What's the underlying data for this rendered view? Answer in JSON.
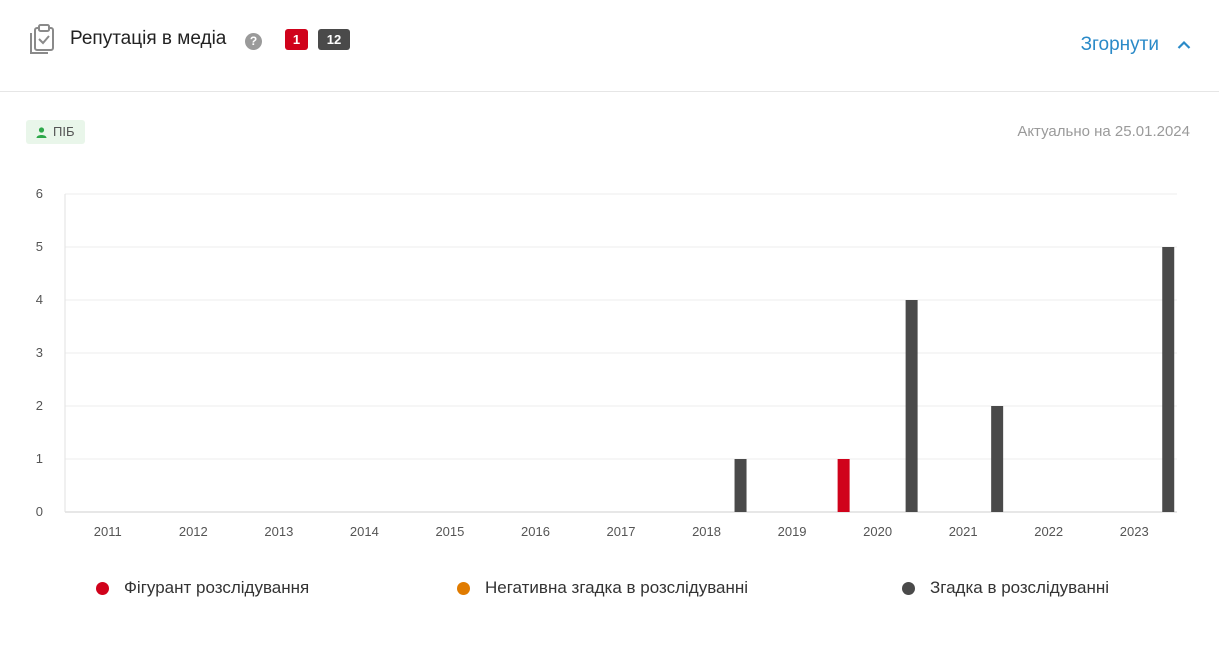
{
  "header": {
    "title": "Репутація в медіа",
    "help_icon": "?",
    "badge_red": "1",
    "badge_dark": "12",
    "collapse_label": "Згорнути"
  },
  "tag": {
    "label": "ПІБ",
    "icon": "person-icon",
    "color": "#2ea84a"
  },
  "actual_date": "Актуально на 25.01.2024",
  "colors": {
    "accent": "#2a8ac8",
    "figurant": "#d0021b",
    "negative": "#e07b00",
    "mention": "#4a4a4a"
  },
  "chart_data": {
    "type": "bar",
    "categories": [
      "2011",
      "2012",
      "2013",
      "2014",
      "2015",
      "2016",
      "2017",
      "2018",
      "2019",
      "2020",
      "2021",
      "2022",
      "2023"
    ],
    "series": [
      {
        "name": "Фігурант розслідування",
        "color": "#d0021b",
        "values": [
          0,
          0,
          0,
          0,
          0,
          0,
          0,
          0,
          0,
          1,
          0,
          0,
          0
        ]
      },
      {
        "name": "Негативна згадка в розслідуванні",
        "color": "#e07b00",
        "values": [
          0,
          0,
          0,
          0,
          0,
          0,
          0,
          0,
          0,
          0,
          0,
          0,
          0
        ]
      },
      {
        "name": "Згадка в розслідуванні",
        "color": "#4a4a4a",
        "values": [
          0,
          0,
          0,
          0,
          0,
          0,
          0,
          1,
          0,
          4,
          2,
          0,
          5
        ]
      }
    ],
    "yticks": [
      "0",
      "1",
      "2",
      "3",
      "4",
      "5",
      "6"
    ],
    "ylim": [
      0,
      6
    ],
    "grid": true,
    "legend": "bottom"
  }
}
